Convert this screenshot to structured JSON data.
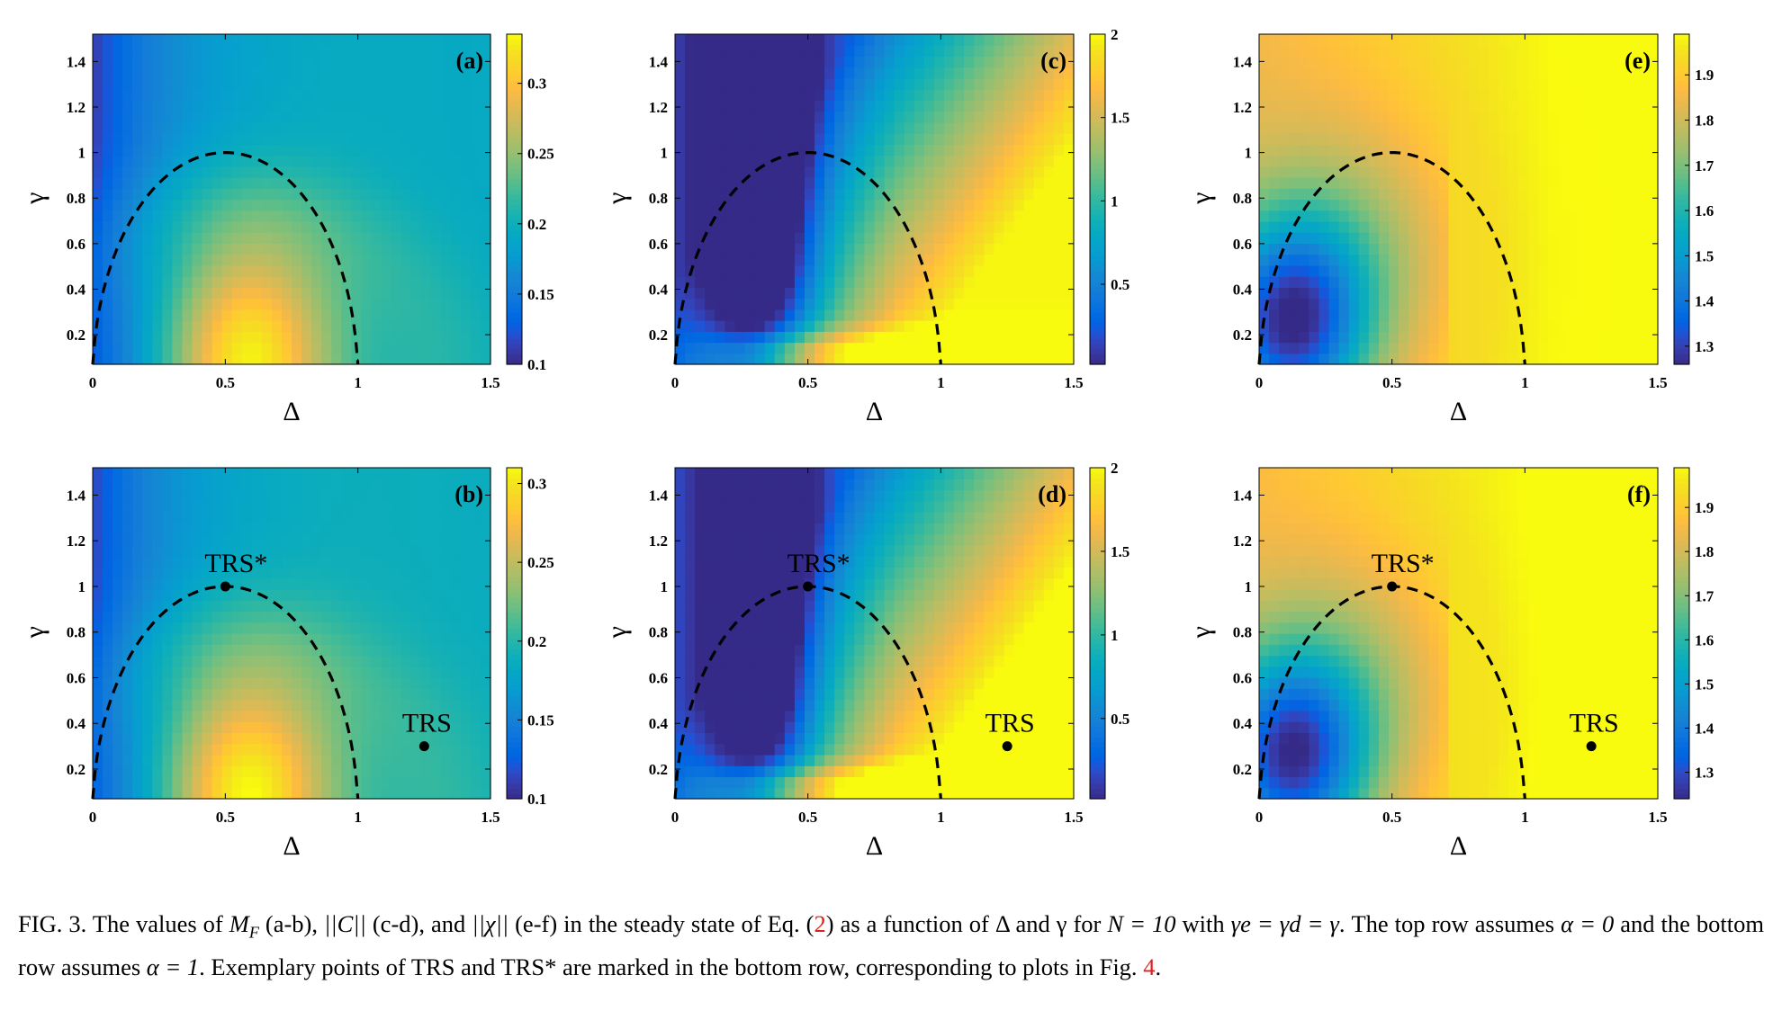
{
  "chart_data": [
    {
      "type": "heatmap",
      "panel": "(a)",
      "xlabel": "Δ",
      "ylabel": "γ",
      "xlim": [
        0,
        1.5
      ],
      "ylim": [
        0.07,
        1.52
      ],
      "xticks": [
        "0",
        "0.5",
        "1",
        "1.5"
      ],
      "yticks": [
        "0.2",
        "0.4",
        "0.6",
        "0.8",
        "1",
        "1.2",
        "1.4"
      ],
      "colorbar": {
        "min": 0.1,
        "max": 0.335,
        "ticks": [
          "0.1",
          "0.15",
          "0.2",
          "0.25",
          "0.3"
        ]
      },
      "dashed_boundary": "Δ² - Δ + γ² = 0 (semi-ellipse from Δ=0 to Δ=1, peak γ=1 at Δ=0.5)",
      "annotations": []
    },
    {
      "type": "heatmap",
      "panel": "(b)",
      "xlabel": "Δ",
      "ylabel": "γ",
      "xlim": [
        0,
        1.5
      ],
      "ylim": [
        0.07,
        1.52
      ],
      "xticks": [
        "0",
        "0.5",
        "1",
        "1.5"
      ],
      "yticks": [
        "0.2",
        "0.4",
        "0.6",
        "0.8",
        "1",
        "1.2",
        "1.4"
      ],
      "colorbar": {
        "min": 0.1,
        "max": 0.31,
        "ticks": [
          "0.1",
          "0.15",
          "0.2",
          "0.25",
          "0.3"
        ]
      },
      "annotations": [
        {
          "label": "TRS*",
          "x": 0.5,
          "y": 1.0
        },
        {
          "label": "TRS",
          "x": 1.25,
          "y": 0.3
        }
      ]
    },
    {
      "type": "heatmap",
      "panel": "(c)",
      "xlabel": "Δ",
      "ylabel": "γ",
      "xlim": [
        0,
        1.5
      ],
      "ylim": [
        0.07,
        1.52
      ],
      "xticks": [
        "0",
        "0.5",
        "1",
        "1.5"
      ],
      "yticks": [
        "0.2",
        "0.4",
        "0.6",
        "0.8",
        "1",
        "1.2",
        "1.4"
      ],
      "colorbar": {
        "min": 0.02,
        "max": 2.0,
        "ticks": [
          "0.5",
          "1",
          "1.5",
          "2"
        ]
      },
      "annotations": []
    },
    {
      "type": "heatmap",
      "panel": "(d)",
      "xlabel": "Δ",
      "ylabel": "γ",
      "xlim": [
        0,
        1.5
      ],
      "ylim": [
        0.07,
        1.52
      ],
      "xticks": [
        "0",
        "0.5",
        "1",
        "1.5"
      ],
      "yticks": [
        "0.2",
        "0.4",
        "0.6",
        "0.8",
        "1",
        "1.2",
        "1.4"
      ],
      "colorbar": {
        "min": 0.02,
        "max": 2.0,
        "ticks": [
          "0.5",
          "1",
          "1.5",
          "2"
        ]
      },
      "annotations": [
        {
          "label": "TRS*",
          "x": 0.5,
          "y": 1.0
        },
        {
          "label": "TRS",
          "x": 1.25,
          "y": 0.3
        }
      ]
    },
    {
      "type": "heatmap",
      "panel": "(e)",
      "xlabel": "Δ",
      "ylabel": "γ",
      "xlim": [
        0,
        1.5
      ],
      "ylim": [
        0.07,
        1.52
      ],
      "xticks": [
        "0",
        "0.5",
        "1",
        "1.5"
      ],
      "yticks": [
        "0.2",
        "0.4",
        "0.6",
        "0.8",
        "1",
        "1.2",
        "1.4"
      ],
      "colorbar": {
        "min": 1.26,
        "max": 1.99,
        "ticks": [
          "1.3",
          "1.4",
          "1.5",
          "1.6",
          "1.7",
          "1.8",
          "1.9"
        ]
      },
      "annotations": []
    },
    {
      "type": "heatmap",
      "panel": "(f)",
      "xlabel": "Δ",
      "ylabel": "γ",
      "xlim": [
        0,
        1.5
      ],
      "ylim": [
        0.07,
        1.52
      ],
      "xticks": [
        "0",
        "0.5",
        "1",
        "1.5"
      ],
      "yticks": [
        "0.2",
        "0.4",
        "0.6",
        "0.8",
        "1",
        "1.2",
        "1.4"
      ],
      "colorbar": {
        "min": 1.24,
        "max": 1.99,
        "ticks": [
          "1.3",
          "1.4",
          "1.5",
          "1.6",
          "1.7",
          "1.8",
          "1.9"
        ]
      },
      "annotations": [
        {
          "label": "TRS*",
          "x": 0.5,
          "y": 1.0
        },
        {
          "label": "TRS",
          "x": 1.25,
          "y": 0.3
        }
      ]
    }
  ],
  "caption": {
    "lead": "FIG. 3.  The values of ",
    "p1": " (a-b), ",
    "p2": " (c-d), and ",
    "p3": " (e-f) in the steady state of Eq. (",
    "ref1": "2",
    "p4": ") as a function of Δ and γ for ",
    "p5": " with ",
    "p6": ". The top row assumes ",
    "p7": " and the bottom row assumes ",
    "p8": ". Exemplary points of TRS and TRS* are marked in the bottom row, corresponding to plots in Fig. ",
    "ref2": "4",
    "end": ".",
    "m_mf": "M",
    "m_mf_sub": "F",
    "m_c": "||C||",
    "m_chi": "||χ||",
    "m_n": "N = 10",
    "m_gam": "γe = γd = γ",
    "m_a0": "α = 0",
    "m_a1": "α = 1"
  }
}
